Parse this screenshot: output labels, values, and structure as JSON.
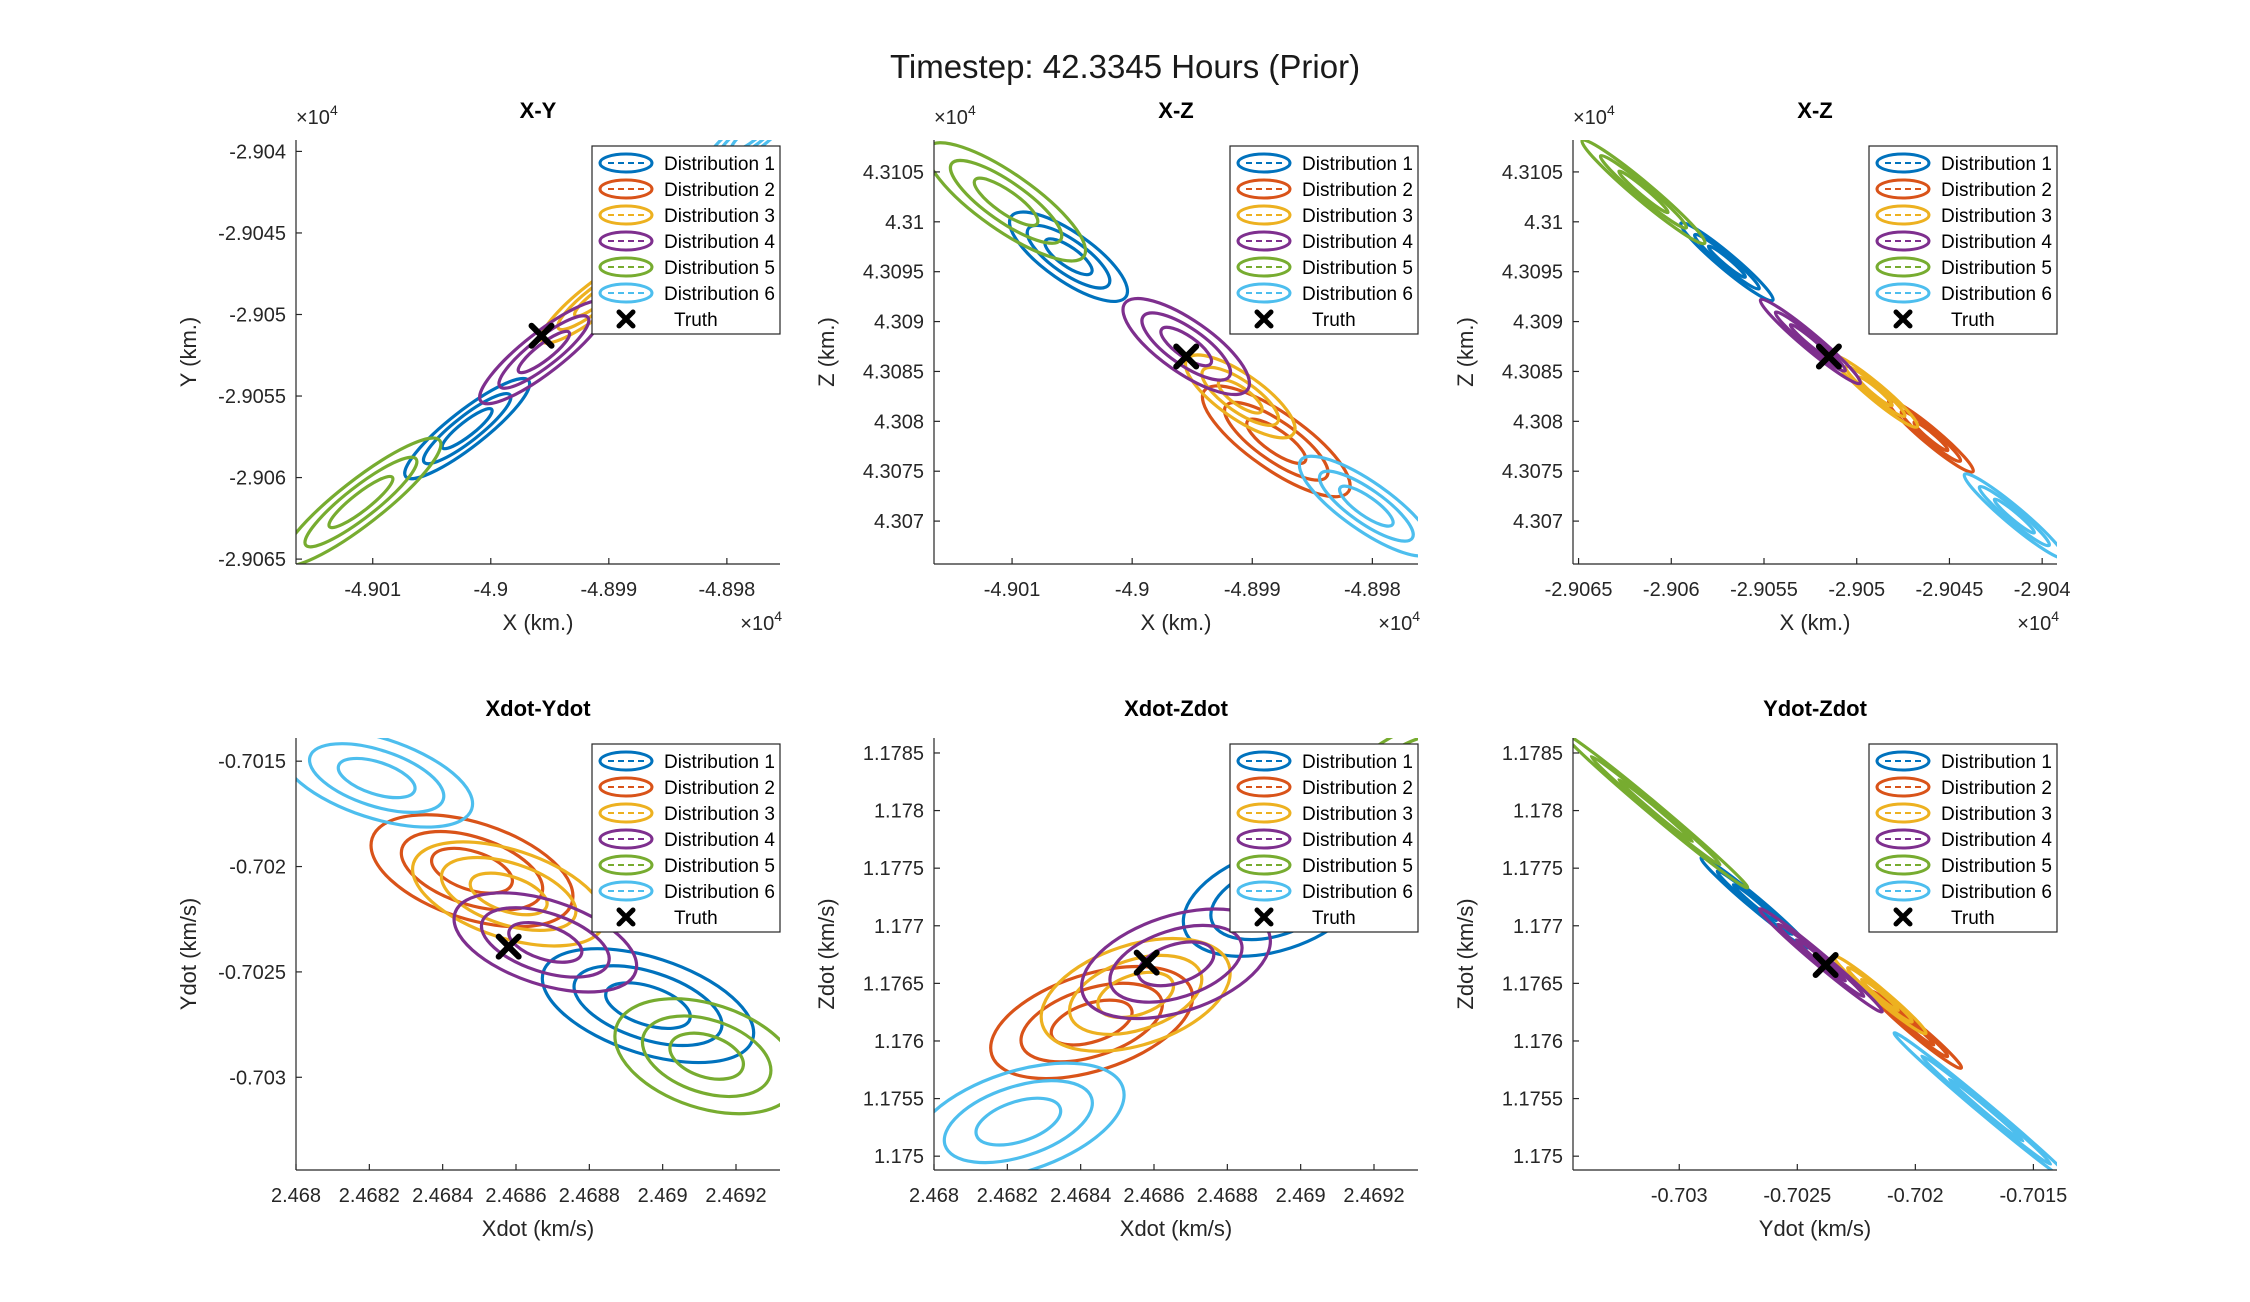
{
  "suptitle": "Timestep: 42.3345 Hours (Prior)",
  "colors": {
    "d1": "#0072BD",
    "d2": "#D95319",
    "d3": "#EDB120",
    "d4": "#7E2F8E",
    "d5": "#77AC30",
    "d6": "#4DBEEE",
    "truth": "#000000",
    "axis": "#262626"
  },
  "legend": {
    "entries": [
      "Distribution 1",
      "Distribution 2",
      "Distribution 3",
      "Distribution 4",
      "Distribution 5",
      "Distribution 6",
      "Truth"
    ]
  },
  "chart_data": [
    {
      "type": "scatter",
      "title": "X-Y",
      "xlabel": "X (km.)",
      "ylabel": "Y (km.)",
      "xexp": "×10",
      "xexp_power": "4",
      "yexp": "×10",
      "yexp_power": "4",
      "xlim": [
        -49016.5,
        -48975.5
      ],
      "ylim": [
        -29065.3,
        -29039.3
      ],
      "xticks": [
        -49010,
        -49000,
        -48990,
        -48980
      ],
      "xtick_labels": [
        "-4.901",
        "-4.9",
        "-4.899",
        "-4.898"
      ],
      "yticks": [
        -29065,
        -29060,
        -29055,
        -29050,
        -29045,
        -29040
      ],
      "ytick_labels": [
        "-2.9065",
        "-2.906",
        "-2.9055",
        "-2.905",
        "-2.9045",
        "-2.904"
      ],
      "grid": false,
      "legend_position": "top-right",
      "series": [
        {
          "name": "Distribution 1",
          "center": [
            -49002.0,
            -29057.0
          ]
        },
        {
          "name": "Distribution 2",
          "center": [
            -48984.0,
            -29043.5
          ]
        },
        {
          "name": "Distribution 3",
          "center": [
            -48991.0,
            -29049.0
          ]
        },
        {
          "name": "Distribution 4",
          "center": [
            -48995.5,
            -29052.3
          ]
        },
        {
          "name": "Distribution 5",
          "center": [
            -49011.0,
            -29061.5
          ]
        },
        {
          "name": "Distribution 6",
          "center": [
            -48978.0,
            -29039.0
          ]
        }
      ],
      "truth": [
        -48995.7,
        -29051.3
      ]
    },
    {
      "type": "scatter",
      "title": "X-Z",
      "xlabel": "X (km.)",
      "ylabel": "Z (km.)",
      "xexp": "×10",
      "xexp_power": "4",
      "yexp": "×10",
      "yexp_power": "4",
      "xlim": [
        -49016.5,
        -48976.2
      ],
      "ylim": [
        43065.7,
        43108.2
      ],
      "xticks": [
        -49010,
        -49000,
        -48990,
        -48980
      ],
      "xtick_labels": [
        "-4.901",
        "-4.9",
        "-4.899",
        "-4.898"
      ],
      "yticks": [
        43070,
        43075,
        43080,
        43085,
        43090,
        43095,
        43100,
        43105
      ],
      "ytick_labels": [
        "4.307",
        "4.3075",
        "4.308",
        "4.3085",
        "4.309",
        "4.3095",
        "4.31",
        "4.3105"
      ],
      "grid": false,
      "legend_position": "top-right",
      "series": [
        {
          "name": "Distribution 1",
          "center": [
            -49005.3,
            43096.5
          ]
        },
        {
          "name": "Distribution 2",
          "center": [
            -48988.0,
            43078.0
          ]
        },
        {
          "name": "Distribution 3",
          "center": [
            -48991.0,
            43082.5
          ]
        },
        {
          "name": "Distribution 4",
          "center": [
            -48995.5,
            43087.5
          ]
        },
        {
          "name": "Distribution 5",
          "center": [
            -49010.5,
            43102.0
          ]
        },
        {
          "name": "Distribution 6",
          "center": [
            -48980.5,
            43071.5
          ]
        }
      ],
      "truth": [
        -48995.5,
        43086.5
      ]
    },
    {
      "type": "scatter",
      "title": "X-Z",
      "xlabel": "X (km.)",
      "ylabel": "Z (km.)",
      "xexp": "×10",
      "xexp_power": "4",
      "yexp": "×10",
      "yexp_power": "4",
      "xlim": [
        -29065.3,
        -29039.2
      ],
      "ylim": [
        43065.7,
        43108.2
      ],
      "xticks": [
        -29065,
        -29060,
        -29055,
        -29050,
        -29045,
        -29040
      ],
      "xtick_labels": [
        "-2.9065",
        "-2.906",
        "-2.9055",
        "-2.905",
        "-2.9045",
        "-2.904"
      ],
      "yticks": [
        43070,
        43075,
        43080,
        43085,
        43090,
        43095,
        43100,
        43105
      ],
      "ytick_labels": [
        "4.307",
        "4.3075",
        "4.308",
        "4.3085",
        "4.309",
        "4.3095",
        "4.31",
        "4.3105"
      ],
      "grid": false,
      "legend_position": "top-right",
      "series": [
        {
          "name": "Distribution 1",
          "center": [
            -29057.0,
            43096.0
          ]
        },
        {
          "name": "Distribution 2",
          "center": [
            -29046.0,
            43078.5
          ]
        },
        {
          "name": "Distribution 3",
          "center": [
            -29049.0,
            43083.0
          ]
        },
        {
          "name": "Distribution 4",
          "center": [
            -29052.5,
            43088.0
          ]
        },
        {
          "name": "Distribution 5",
          "center": [
            -29061.5,
            43103.0
          ]
        },
        {
          "name": "Distribution 6",
          "center": [
            -29041.5,
            43070.5
          ]
        }
      ],
      "truth": [
        -29051.5,
        43086.5
      ]
    },
    {
      "type": "scatter",
      "title": "Xdot-Ydot",
      "xlabel": "Xdot (km/s)",
      "ylabel": "Ydot (km/s)",
      "xlim": [
        2.468,
        2.46932
      ],
      "ylim": [
        -0.70344,
        -0.70139
      ],
      "xticks": [
        2.468,
        2.4682,
        2.4684,
        2.4686,
        2.4688,
        2.469,
        2.4692
      ],
      "xtick_labels": [
        "2.468",
        "2.4682",
        "2.4684",
        "2.4686",
        "2.4688",
        "2.469",
        "2.4692"
      ],
      "yticks": [
        -0.703,
        -0.7025,
        -0.702,
        -0.7015
      ],
      "ytick_labels": [
        "-0.703",
        "-0.7025",
        "-0.702",
        "-0.7015"
      ],
      "grid": false,
      "legend_position": "top-right",
      "series": [
        {
          "name": "Distribution 1",
          "center": [
            2.46896,
            -0.70266
          ]
        },
        {
          "name": "Distribution 2",
          "center": [
            2.46848,
            -0.70202
          ]
        },
        {
          "name": "Distribution 3",
          "center": [
            2.46858,
            -0.70213
          ]
        },
        {
          "name": "Distribution 4",
          "center": [
            2.46868,
            -0.70236
          ]
        },
        {
          "name": "Distribution 5",
          "center": [
            2.46912,
            -0.7029
          ]
        },
        {
          "name": "Distribution 6",
          "center": [
            2.46822,
            -0.70158
          ]
        }
      ],
      "truth": [
        2.46858,
        -0.70238
      ]
    },
    {
      "type": "scatter",
      "title": "Xdot-Zdot",
      "xlabel": "Xdot (km/s)",
      "ylabel": "Zdot (km/s)",
      "xlim": [
        2.468,
        2.46932
      ],
      "ylim": [
        1.17488,
        1.17863
      ],
      "xticks": [
        2.468,
        2.4682,
        2.4684,
        2.4686,
        2.4688,
        2.469,
        2.4692
      ],
      "xtick_labels": [
        "2.468",
        "2.4682",
        "2.4684",
        "2.4686",
        "2.4688",
        "2.469",
        "2.4692"
      ],
      "yticks": [
        1.175,
        1.1755,
        1.176,
        1.1765,
        1.177,
        1.1775,
        1.178,
        1.1785
      ],
      "ytick_labels": [
        "1.175",
        "1.1755",
        "1.176",
        "1.1765",
        "1.177",
        "1.1775",
        "1.178",
        "1.1785"
      ],
      "grid": false,
      "legend_position": "top-right",
      "series": [
        {
          "name": "Distribution 1",
          "center": [
            2.46893,
            1.17722
          ]
        },
        {
          "name": "Distribution 2",
          "center": [
            2.46843,
            1.17616
          ]
        },
        {
          "name": "Distribution 3",
          "center": [
            2.46855,
            1.1764
          ]
        },
        {
          "name": "Distribution 4",
          "center": [
            2.46866,
            1.17667
          ]
        },
        {
          "name": "Distribution 5",
          "center": [
            2.46935,
            1.1784
          ]
        },
        {
          "name": "Distribution 6",
          "center": [
            2.46823,
            1.1753
          ]
        }
      ],
      "truth": [
        2.46858,
        1.17668
      ]
    },
    {
      "type": "scatter",
      "title": "Ydot-Zdot",
      "xlabel": "Ydot (km/s)",
      "ylabel": "Zdot (km/s)",
      "xlim": [
        -0.70345,
        -0.7014
      ],
      "ylim": [
        1.17488,
        1.17863
      ],
      "xticks": [
        -0.703,
        -0.7025,
        -0.702,
        -0.7015
      ],
      "xtick_labels": [
        "-0.703",
        "-0.7025",
        "-0.702",
        "-0.7015"
      ],
      "yticks": [
        1.175,
        1.1755,
        1.176,
        1.1765,
        1.177,
        1.1775,
        1.178,
        1.1785
      ],
      "ytick_labels": [
        "1.175",
        "1.1755",
        "1.176",
        "1.1765",
        "1.177",
        "1.1775",
        "1.178",
        "1.1785"
      ],
      "grid": false,
      "legend_position": "top-right",
      "series": [
        {
          "name": "Distribution 1",
          "center": [
            -0.70268,
            1.1772
          ]
        },
        {
          "name": "Distribution 2",
          "center": [
            -0.702,
            1.1761
          ]
        },
        {
          "name": "Distribution 3",
          "center": [
            -0.70215,
            1.1764
          ]
        },
        {
          "name": "Distribution 4",
          "center": [
            -0.7024,
            1.1767
          ]
        },
        {
          "name": "Distribution 5",
          "center": [
            -0.7031,
            1.178
          ]
        },
        {
          "name": "Distribution 6",
          "center": [
            -0.7017,
            1.1754
          ]
        }
      ],
      "truth": [
        -0.70238,
        1.17666
      ]
    }
  ]
}
